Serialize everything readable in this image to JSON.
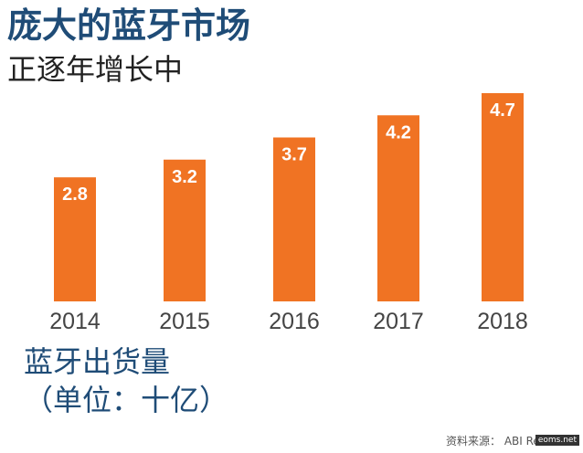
{
  "header": {
    "title": "庞大的蓝牙市场",
    "subtitle": "正逐年增长中"
  },
  "unit": {
    "label": "蓝牙出货量",
    "sub": "（单位：十亿）"
  },
  "source": "资料来源： ABI Research",
  "watermark": "eoms.net",
  "colors": {
    "bar": "#f07323",
    "title": "#1f4c77",
    "tick": "#444444"
  },
  "chart_data": {
    "type": "bar",
    "title": "庞大的蓝牙市场",
    "subtitle": "正逐年增长中",
    "categories": [
      "2014",
      "2015",
      "2016",
      "2017",
      "2018"
    ],
    "values": [
      2.8,
      3.2,
      3.7,
      4.2,
      4.7
    ],
    "data_labels": [
      "2.8",
      "3.2",
      "3.7",
      "4.2",
      "4.7"
    ],
    "ylabel": "蓝牙出货量（单位：十亿）",
    "xlabel": "",
    "ylim": [
      0,
      4.7
    ],
    "grid": false,
    "legend": "none"
  }
}
